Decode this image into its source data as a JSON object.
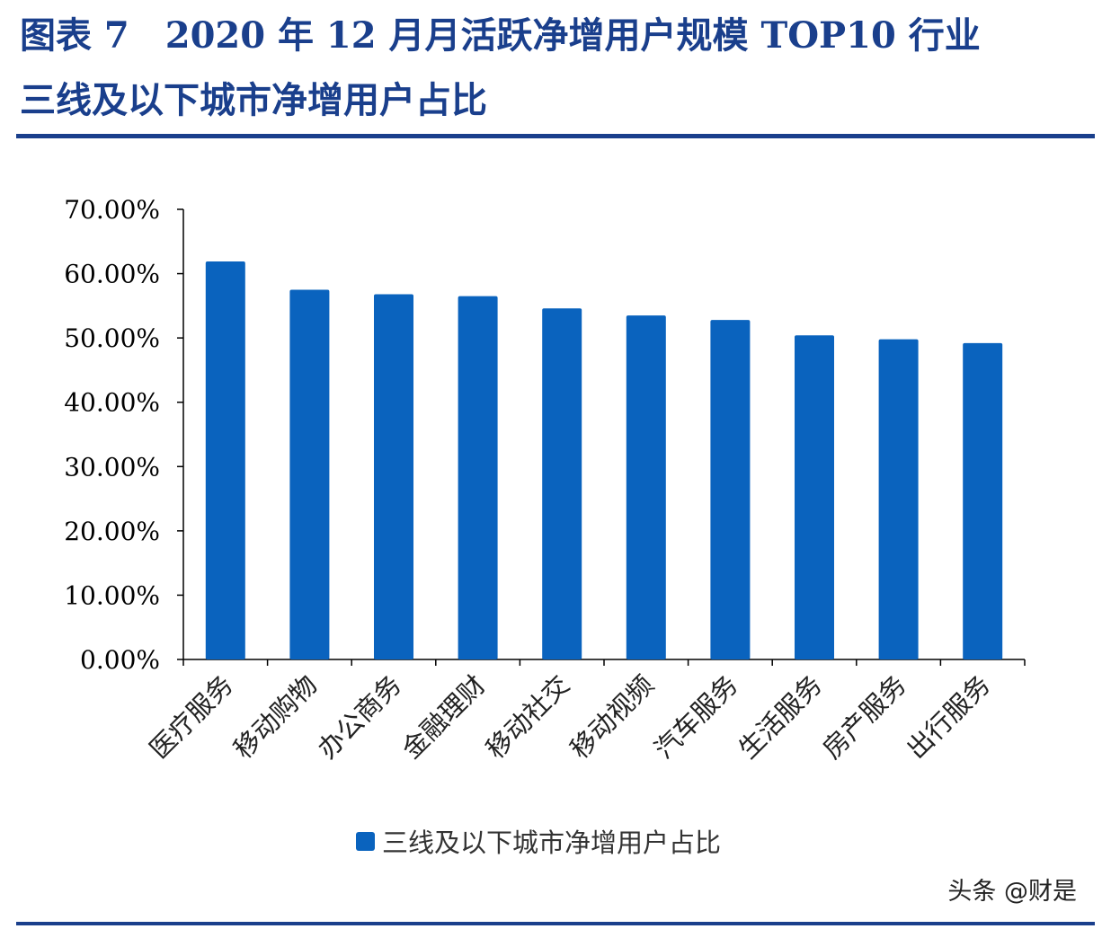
{
  "header": {
    "title_line1": "图表 7　2020 年 12 月月活跃净增用户规模 TOP10 行业",
    "title_line2": "三线及以下城市净增用户占比"
  },
  "watermark": "头条 @财是",
  "chart_data": {
    "type": "bar",
    "categories": [
      "医疗服务",
      "移动购物",
      "办公商务",
      "金融理财",
      "移动社交",
      "移动视频",
      "汽车服务",
      "生活服务",
      "房产服务",
      "出行服务"
    ],
    "series": [
      {
        "name": "三线及以下城市净增用户占比",
        "color": "#0a63be",
        "values": [
          61.9,
          57.5,
          56.8,
          56.5,
          54.6,
          53.5,
          52.8,
          50.4,
          49.8,
          49.2
        ]
      }
    ],
    "yticks": [
      "0.00%",
      "10.00%",
      "20.00%",
      "30.00%",
      "40.00%",
      "50.00%",
      "60.00%",
      "70.00%"
    ],
    "ylim": [
      0,
      70
    ],
    "grid": false,
    "legend_position": "bottom"
  }
}
